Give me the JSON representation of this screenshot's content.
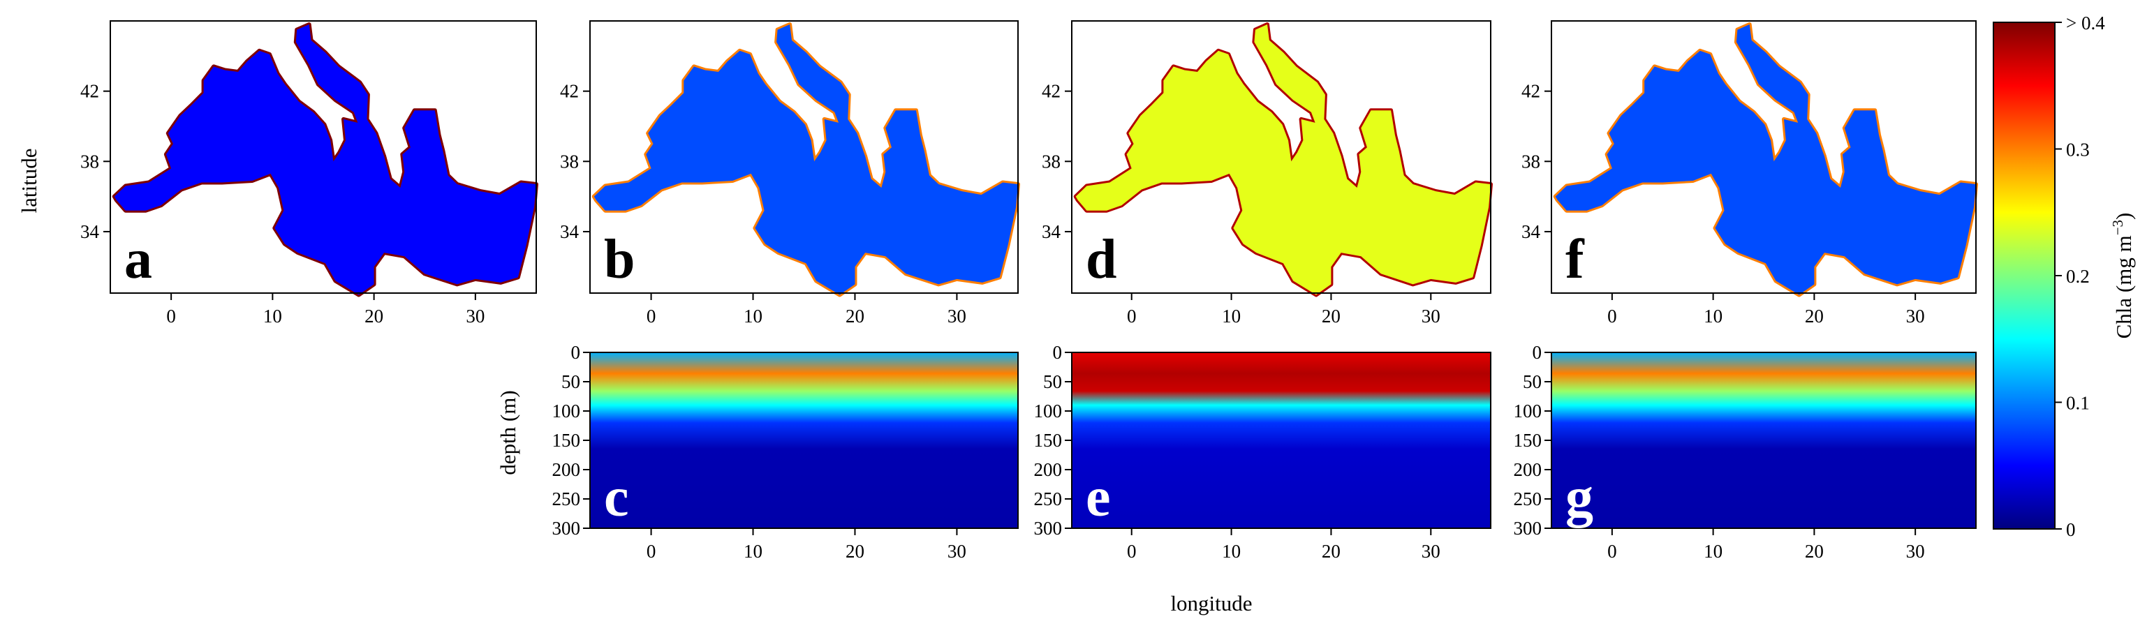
{
  "chart_data": {
    "type": "heatmap",
    "description_units": "Chla concentration",
    "colorbar": {
      "label": "Chla (mg m⁻³)",
      "label_base": "Chla (mg m",
      "label_sup": "−3",
      "label_close": ")",
      "range": [
        0,
        0.4
      ],
      "ticks": [
        {
          "value": 0,
          "label": "0"
        },
        {
          "value": 0.1,
          "label": "0.1"
        },
        {
          "value": 0.2,
          "label": "0.2"
        },
        {
          "value": 0.3,
          "label": "0.3"
        },
        {
          "value": 0.4,
          "label": "> 0.4"
        }
      ],
      "colors": [
        "#00007f",
        "#0000ff",
        "#007fff",
        "#00ffff",
        "#7fff7f",
        "#ffff00",
        "#ff7f00",
        "#ff0000",
        "#7f0000"
      ]
    },
    "shared_xlabel": "longitude",
    "x_range": [
      -6,
      36
    ],
    "x_ticks": [
      {
        "value": 0,
        "label": "0"
      },
      {
        "value": 10,
        "label": "10"
      },
      {
        "value": 20,
        "label": "20"
      },
      {
        "value": 30,
        "label": "30"
      }
    ],
    "maps": {
      "ylabel": "latitude",
      "y_range": [
        30.5,
        46
      ],
      "y_ticks": [
        {
          "value": 34,
          "label": "34"
        },
        {
          "value": 38,
          "label": "38"
        },
        {
          "value": 42,
          "label": "42"
        }
      ],
      "panels": [
        {
          "letter": "a",
          "typical_chla": 0.05,
          "coastal_chla": 0.4
        },
        {
          "letter": "b",
          "typical_chla": 0.08,
          "coastal_chla": 0.3
        },
        {
          "letter": "d",
          "typical_chla": 0.24,
          "coastal_chla": 0.38
        },
        {
          "letter": "f",
          "typical_chla": 0.08,
          "coastal_chla": 0.3
        }
      ]
    },
    "sections": {
      "ylabel": "depth (m)",
      "y_range": [
        0,
        300
      ],
      "y_ticks": [
        {
          "value": 0,
          "label": "0"
        },
        {
          "value": 50,
          "label": "50"
        },
        {
          "value": 100,
          "label": "100"
        },
        {
          "value": 150,
          "label": "150"
        },
        {
          "value": 200,
          "label": "200"
        },
        {
          "value": 250,
          "label": "250"
        },
        {
          "value": 300,
          "label": "300"
        }
      ],
      "panels": [
        {
          "letter": "c",
          "surface_chla": 0.12,
          "dcm_chla": 0.3,
          "deep_chla": 0.02
        },
        {
          "letter": "e",
          "surface_chla": 0.36,
          "dcm_chla": 0.38,
          "deep_chla": 0.03
        },
        {
          "letter": "g",
          "surface_chla": 0.12,
          "dcm_chla": 0.3,
          "deep_chla": 0.02
        }
      ]
    }
  }
}
